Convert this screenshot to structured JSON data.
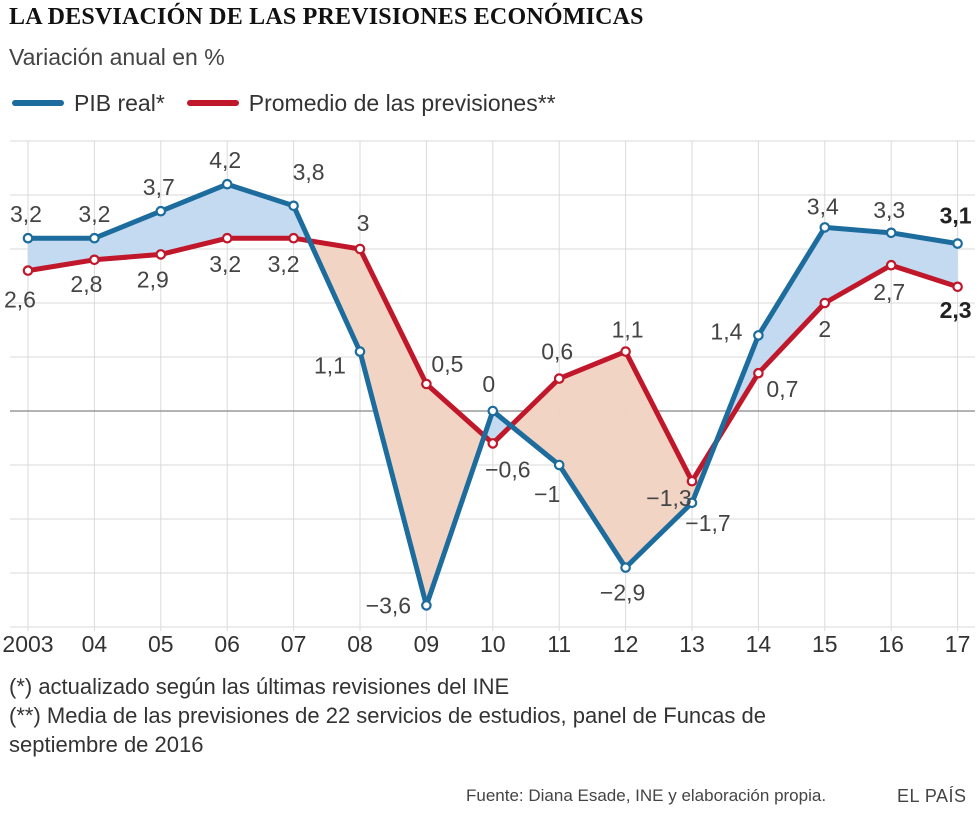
{
  "title": "LA DESVIACIÓN DE LAS PREVISIONES ECONÓMICAS",
  "subtitle": "Variación anual en %",
  "legend": [
    {
      "label": "PIB real*",
      "color": "#1c6c9e"
    },
    {
      "label": "Promedio de las previsiones**",
      "color": "#c0172b"
    }
  ],
  "chart_data": {
    "type": "line",
    "categories": [
      "2003",
      "04",
      "05",
      "06",
      "07",
      "08",
      "09",
      "10",
      "11",
      "12",
      "13",
      "14",
      "15",
      "16",
      "17"
    ],
    "series": [
      {
        "name": "PIB real*",
        "color": "#1c6c9e",
        "values": [
          3.2,
          3.2,
          3.7,
          4.2,
          3.8,
          1.1,
          -3.6,
          0,
          -1,
          -2.9,
          -1.7,
          1.4,
          3.4,
          3.3,
          3.1
        ],
        "labels": [
          "3,2",
          "3,2",
          "3,7",
          "4,2",
          "3,8",
          "1,1",
          "−3,6",
          "0",
          "−1",
          "−2,9",
          "−1,7",
          "1,4",
          "3,4",
          "3,3",
          "3,1"
        ]
      },
      {
        "name": "Promedio de las previsiones**",
        "color": "#c0172b",
        "values": [
          2.6,
          2.8,
          2.9,
          3.2,
          3.2,
          3,
          0.5,
          -0.6,
          0.6,
          1.1,
          -1.3,
          0.7,
          2,
          2.7,
          2.3
        ],
        "labels": [
          "2,6",
          "2,8",
          "2,9",
          "3,2",
          "3,2",
          "3",
          "0,5",
          "−0,6",
          "0,6",
          "1,1",
          "−1,3",
          "0,7",
          "2",
          "2,7",
          "2,3"
        ]
      }
    ],
    "ylim": [
      -4,
      5
    ],
    "grid": true,
    "fill_colors": {
      "actual_above": "#c4daf0",
      "actual_below": "#f1d4c3"
    }
  },
  "notes": [
    "(*) actualizado según las últimas revisiones del INE",
    "(**) Media de las previsiones de 22 servicios de estudios, panel de Funcas de",
    "septiembre de 2016"
  ],
  "source": "Fuente: Diana Esade, INE y elaboración propia.",
  "brand": "EL PAÍS"
}
